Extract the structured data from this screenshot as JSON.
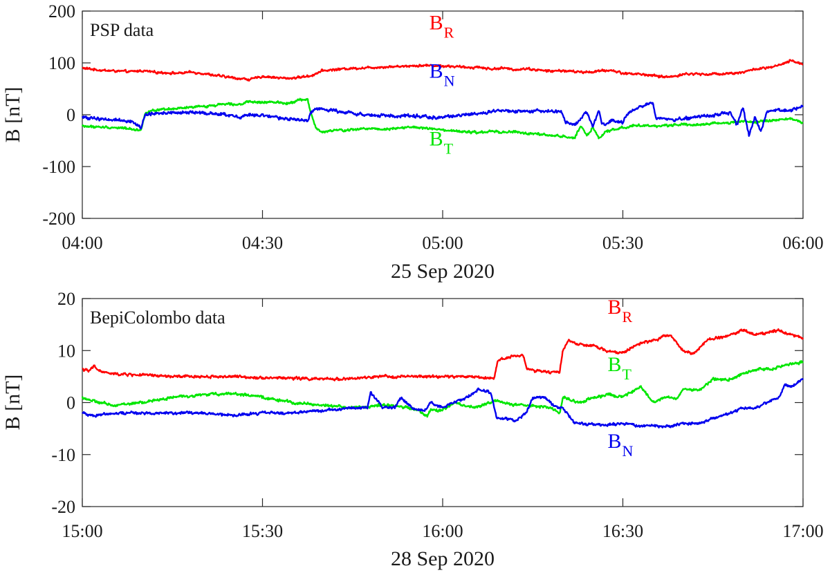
{
  "chart_data": [
    {
      "type": "line",
      "title": "PSP data",
      "xlabel": "25 Sep 2020",
      "ylabel": "B [nT]",
      "xlim_min": [
        240,
        360
      ],
      "ylim": [
        -200,
        200
      ],
      "xticks": [
        240,
        270,
        300,
        330,
        360
      ],
      "xtick_labels": [
        "04:00",
        "04:30",
        "05:00",
        "05:30",
        "06:00"
      ],
      "yticks": [
        -200,
        -100,
        0,
        100,
        200
      ],
      "ytick_labels": [
        "-200",
        "-100",
        "0",
        "100",
        "200"
      ],
      "series": [
        {
          "name": "BR",
          "label": "B",
          "sub": "R",
          "color": "#ff0000",
          "x": [
            240,
            243,
            246,
            248,
            250,
            252,
            254,
            256,
            258,
            260,
            262,
            264,
            266,
            268,
            270,
            272,
            274,
            275,
            276,
            278,
            280,
            282,
            284,
            286,
            288,
            290,
            292,
            294,
            296,
            298,
            300,
            302,
            304,
            306,
            308,
            310,
            312,
            314,
            316,
            318,
            320,
            322,
            324,
            326,
            328,
            330,
            332,
            334,
            336,
            338,
            340,
            342,
            344,
            346,
            348,
            350,
            352,
            354,
            356,
            358,
            360
          ],
          "y": [
            90,
            86,
            84,
            83,
            85,
            82,
            81,
            80,
            82,
            80,
            76,
            73,
            70,
            68,
            74,
            72,
            70,
            71,
            72,
            75,
            85,
            87,
            89,
            90,
            91,
            92,
            93,
            94,
            95,
            95,
            94,
            93,
            91,
            92,
            88,
            90,
            87,
            89,
            86,
            84,
            85,
            83,
            82,
            84,
            86,
            80,
            79,
            77,
            74,
            73,
            78,
            79,
            78,
            79,
            80,
            82,
            88,
            90,
            95,
            104,
            98
          ],
          "noise": 3
        },
        {
          "name": "BT",
          "label": "B",
          "sub": "T",
          "color": "#00e600",
          "x": [
            240,
            243,
            246,
            248,
            249.8,
            250.5,
            252,
            254,
            256,
            258,
            260,
            262,
            264,
            266,
            268,
            270,
            272,
            274,
            276,
            277.5,
            278,
            279,
            280,
            282,
            284,
            286,
            288,
            290,
            292,
            294,
            296,
            298,
            300,
            302,
            304,
            306,
            308,
            310,
            312,
            314,
            316,
            318,
            320,
            322,
            323,
            324,
            325,
            326,
            327,
            328,
            330,
            332,
            334,
            336,
            338,
            340,
            342,
            344,
            346,
            348,
            350,
            352,
            354,
            356,
            358,
            360
          ],
          "y": [
            -22,
            -24,
            -25,
            -27,
            -30,
            5,
            8,
            10,
            12,
            14,
            16,
            18,
            22,
            20,
            25,
            23,
            25,
            22,
            28,
            30,
            5,
            -28,
            -34,
            -30,
            -30,
            -28,
            -26,
            -28,
            -26,
            -24,
            -25,
            -27,
            -30,
            -32,
            -33,
            -35,
            -32,
            -34,
            -33,
            -36,
            -38,
            -40,
            -42,
            -45,
            -20,
            -40,
            -25,
            -45,
            -35,
            -30,
            -25,
            -20,
            -22,
            -22,
            -20,
            -18,
            -20,
            -18,
            -16,
            -15,
            -12,
            -15,
            -12,
            -10,
            -8,
            -15
          ],
          "noise": 3
        },
        {
          "name": "BN",
          "label": "B",
          "sub": "N",
          "color": "#0000ee",
          "x": [
            240,
            243,
            246,
            248,
            249.8,
            250.5,
            252,
            254,
            256,
            258,
            260,
            262,
            264,
            266,
            268,
            270,
            272,
            274,
            276,
            277.5,
            278,
            279,
            280,
            282,
            284,
            286,
            288,
            290,
            292,
            294,
            296,
            298,
            300,
            302,
            304,
            306,
            308,
            310,
            312,
            314,
            316,
            318,
            319.8,
            320.5,
            322,
            324,
            325,
            326,
            326.5,
            327,
            328,
            330,
            331,
            333,
            334,
            335,
            335.5,
            336,
            338,
            340,
            342,
            344,
            346,
            348,
            349,
            350,
            351,
            352,
            353,
            354,
            356,
            358,
            360
          ],
          "y": [
            -5,
            -8,
            -10,
            -12,
            -25,
            0,
            2,
            4,
            3,
            5,
            3,
            2,
            0,
            -5,
            0,
            -2,
            -5,
            -8,
            -10,
            -12,
            5,
            12,
            10,
            8,
            5,
            2,
            -2,
            -1,
            -3,
            -2,
            -3,
            -5,
            -5,
            -2,
            0,
            2,
            5,
            8,
            6,
            5,
            8,
            7,
            6,
            -15,
            -20,
            5,
            -25,
            10,
            -15,
            -20,
            -10,
            -15,
            5,
            15,
            20,
            22,
            -5,
            -5,
            -10,
            -8,
            -5,
            -2,
            0,
            5,
            -20,
            15,
            -40,
            -5,
            -30,
            5,
            10,
            8,
            15
          ],
          "noise": 4
        }
      ],
      "labels": [
        {
          "series": "BR",
          "x": 298,
          "y": 125
        },
        {
          "series": "BN",
          "x": 298,
          "y": 45
        },
        {
          "series": "BT",
          "x": 298,
          "y": -75
        }
      ]
    },
    {
      "type": "line",
      "title": "BepiColombo data",
      "xlabel": "28 Sep 2020",
      "ylabel": "B [nT]",
      "xlim_min": [
        900,
        1020
      ],
      "ylim": [
        -20,
        20
      ],
      "xticks": [
        900,
        930,
        960,
        990,
        1020
      ],
      "xtick_labels": [
        "15:00",
        "15:30",
        "16:00",
        "16:30",
        "17:00"
      ],
      "yticks": [
        -20,
        -10,
        0,
        10,
        20
      ],
      "ytick_labels": [
        "-20",
        "-10",
        "0",
        "10",
        "20"
      ],
      "series": [
        {
          "name": "BR",
          "label": "B",
          "sub": "R",
          "color": "#ff0000",
          "x": [
            900,
            901,
            902,
            903,
            905,
            910,
            915,
            920,
            925,
            930,
            935,
            940,
            945,
            950,
            955,
            960,
            965,
            968.5,
            969.2,
            970,
            972,
            973.5,
            974,
            976,
            978,
            979.5,
            980,
            981,
            983,
            985,
            987,
            990,
            992,
            995,
            998,
            1000,
            1002,
            1004,
            1006,
            1008,
            1010,
            1012,
            1014,
            1016,
            1018,
            1020
          ],
          "y": [
            6.5,
            6,
            7,
            6,
            5.5,
            5.3,
            5,
            5,
            5,
            4.8,
            4.7,
            4.5,
            4.6,
            5,
            5,
            5,
            5,
            4.6,
            8,
            8.5,
            9,
            9,
            6.5,
            6,
            5.8,
            6,
            10,
            12,
            11,
            11,
            10,
            9.5,
            11,
            12,
            13,
            10,
            9.5,
            12,
            12.5,
            13,
            14,
            13,
            13.5,
            14,
            13,
            12.5
          ],
          "noise": 0.35
        },
        {
          "name": "BT",
          "label": "B",
          "sub": "T",
          "color": "#00e600",
          "x": [
            900,
            902,
            905,
            910,
            915,
            920,
            925,
            930,
            935,
            940,
            945,
            950,
            955,
            957.5,
            958,
            960,
            962,
            965,
            968,
            968.5,
            970,
            972,
            974,
            976,
            978,
            979.5,
            980,
            983,
            985,
            988,
            990,
            993,
            995,
            997,
            999,
            1000,
            1003,
            1005,
            1008,
            1010,
            1013,
            1015,
            1018,
            1020
          ],
          "y": [
            1,
            0.2,
            -0.5,
            0,
            1,
            1.5,
            1.8,
            1,
            0,
            -0.5,
            -1,
            -0.5,
            -1,
            -2.5,
            -1.5,
            -1.5,
            0,
            -1,
            0,
            0.5,
            0,
            -0.5,
            -0.5,
            -0.8,
            -1,
            -2,
            1,
            0,
            1,
            1.5,
            1,
            3,
            0,
            1,
            0.8,
            2.5,
            2.5,
            4.5,
            4.5,
            5.5,
            6.5,
            6.5,
            7.5,
            7.8
          ],
          "noise": 0.35
        },
        {
          "name": "BN",
          "label": "B",
          "sub": "N",
          "color": "#0000ee",
          "x": [
            900,
            902,
            905,
            910,
            915,
            920,
            925,
            930,
            935,
            940,
            945,
            947.5,
            948,
            950,
            952,
            953,
            955,
            957,
            958,
            960,
            962,
            964,
            966,
            968,
            969,
            970,
            972,
            974,
            975,
            977,
            979,
            980,
            982,
            985,
            988,
            990,
            993,
            995,
            998,
            1000,
            1003,
            1005,
            1008,
            1010,
            1012,
            1014,
            1016,
            1017,
            1018,
            1020
          ],
          "y": [
            -2,
            -2.5,
            -2,
            -2,
            -2,
            -2,
            -2.5,
            -2,
            -2,
            -1.5,
            -1,
            -1,
            2,
            -1,
            -1,
            1,
            -1,
            -1.5,
            0,
            -1,
            0,
            1,
            2.5,
            2,
            -3,
            -3,
            -3.5,
            -2,
            1,
            1,
            -1,
            -1,
            -4,
            -4.2,
            -4.3,
            -4,
            -4.5,
            -4.5,
            -4.5,
            -4,
            -4,
            -3,
            -2,
            -1,
            -1,
            0,
            1,
            3.5,
            3,
            4.5
          ],
          "noise": 0.35
        }
      ],
      "labels": [
        {
          "series": "BR",
          "x": 990,
          "y": 15.5
        },
        {
          "series": "BT",
          "x": 990,
          "y": 5
        },
        {
          "series": "BN",
          "x": 990,
          "y": -9
        }
      ]
    }
  ]
}
